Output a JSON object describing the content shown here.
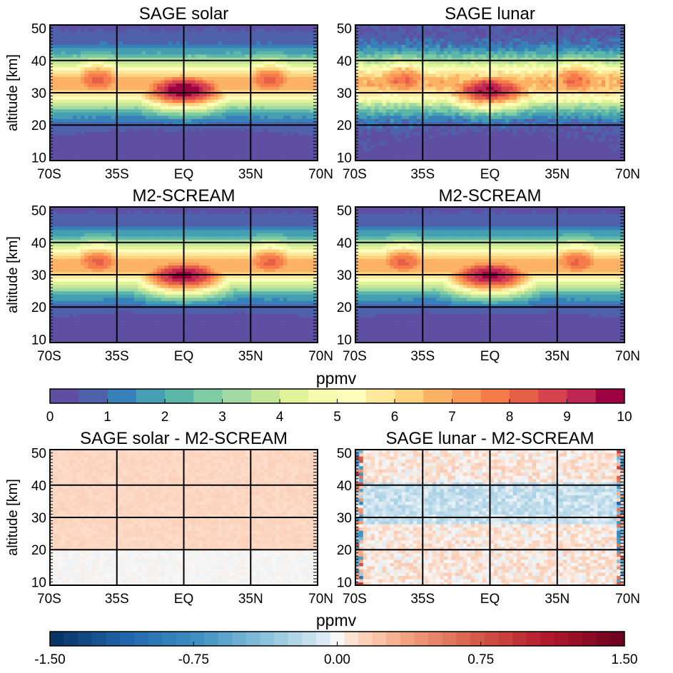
{
  "chart_data": [
    {
      "type": "heatmap",
      "title": "SAGE solar",
      "ylabel": "altitude [km]",
      "x_ticks": [
        "70S",
        "35S",
        "EQ",
        "35N",
        "70N"
      ],
      "y_ticks": [
        "10",
        "20",
        "30",
        "40",
        "50"
      ],
      "xlim": [
        -70,
        70
      ],
      "ylim": [
        9,
        51
      ],
      "colorbar": "ppmv",
      "field": {
        "peak_value": 9.8,
        "peak_lat": 0,
        "peak_alt": 31,
        "secondary_max_lat": [
          -45,
          45
        ],
        "secondary_max_value": 7.8,
        "noise": 0.05
      }
    },
    {
      "type": "heatmap",
      "title": "SAGE lunar",
      "ylabel": "",
      "x_ticks": [
        "70S",
        "35S",
        "EQ",
        "35N",
        "70N"
      ],
      "y_ticks": [
        "10",
        "20",
        "30",
        "40",
        "50"
      ],
      "xlim": [
        -70,
        70
      ],
      "ylim": [
        9,
        51
      ],
      "colorbar": "ppmv",
      "field": {
        "peak_value": 9.2,
        "peak_lat": 0,
        "peak_alt": 31,
        "secondary_max_lat": [
          -45,
          45
        ],
        "secondary_max_value": 7.6,
        "noise": 0.35
      }
    },
    {
      "type": "heatmap",
      "title": "M2-SCREAM",
      "ylabel": "altitude [km]",
      "x_ticks": [
        "70S",
        "35S",
        "EQ",
        "35N",
        "70N"
      ],
      "y_ticks": [
        "10",
        "20",
        "30",
        "40",
        "50"
      ],
      "xlim": [
        -70,
        70
      ],
      "ylim": [
        9,
        51
      ],
      "colorbar": "ppmv",
      "field": {
        "peak_value": 9.4,
        "peak_lat": 0,
        "peak_alt": 30,
        "secondary_max_lat": [
          -45,
          45
        ],
        "secondary_max_value": 7.7,
        "noise": 0.02
      }
    },
    {
      "type": "heatmap",
      "title": "M2-SCREAM",
      "ylabel": "",
      "x_ticks": [
        "70S",
        "35S",
        "EQ",
        "35N",
        "70N"
      ],
      "y_ticks": [
        "10",
        "20",
        "30",
        "40",
        "50"
      ],
      "xlim": [
        -70,
        70
      ],
      "ylim": [
        9,
        51
      ],
      "colorbar": "ppmv",
      "field": {
        "peak_value": 9.4,
        "peak_lat": 0,
        "peak_alt": 30,
        "secondary_max_lat": [
          -45,
          45
        ],
        "secondary_max_value": 7.7,
        "noise": 0.02
      }
    },
    {
      "type": "heatmap",
      "title": "SAGE solar - M2-SCREAM",
      "ylabel": "altitude [km]",
      "x_ticks": [
        "70S",
        "35S",
        "EQ",
        "35N",
        "70N"
      ],
      "y_ticks": [
        "10",
        "20",
        "30",
        "40",
        "50"
      ],
      "xlim": [
        -70,
        70
      ],
      "ylim": [
        9,
        51
      ],
      "colorbar": "ppmv",
      "field": {
        "diff_above_20km": 0.12,
        "diff_below_20km": 0.0,
        "noise": 0.03
      }
    },
    {
      "type": "heatmap",
      "title": "SAGE lunar - M2-SCREAM",
      "ylabel": "",
      "x_ticks": [
        "70S",
        "35S",
        "EQ",
        "35N",
        "70N"
      ],
      "y_ticks": [
        "10",
        "20",
        "30",
        "40",
        "50"
      ],
      "xlim": [
        -70,
        70
      ],
      "ylim": [
        9,
        51
      ],
      "colorbar": "ppmv",
      "field": {
        "diff_30_40km": -0.15,
        "diff_other": 0.06,
        "edge_values": [
          -0.9,
          0.9
        ],
        "noise": 0.12
      }
    }
  ],
  "colorbar_top": {
    "label": "ppmv",
    "range": [
      0,
      10
    ],
    "step": 0.5,
    "tick_labels": [
      "0",
      "1",
      "2",
      "3",
      "4",
      "5",
      "6",
      "7",
      "8",
      "9",
      "10"
    ],
    "colors": [
      "#5e4fa2",
      "#4f61aa",
      "#3681ba",
      "#469eb3",
      "#5cb7a9",
      "#7fcba4",
      "#a2d9a4",
      "#c4e699",
      "#e1f399",
      "#f4fbad",
      "#fefebd",
      "#fee89b",
      "#fed380",
      "#fdb365",
      "#fa9857",
      "#f67b4a",
      "#e65f49",
      "#d6434e",
      "#bf2652",
      "#9e0142"
    ]
  },
  "colorbar_bottom": {
    "label": "ppmv",
    "range": [
      -1.5,
      1.5
    ],
    "tick_labels": [
      "-1.50",
      "-0.75",
      "0.00",
      "0.75",
      "1.50"
    ]
  }
}
